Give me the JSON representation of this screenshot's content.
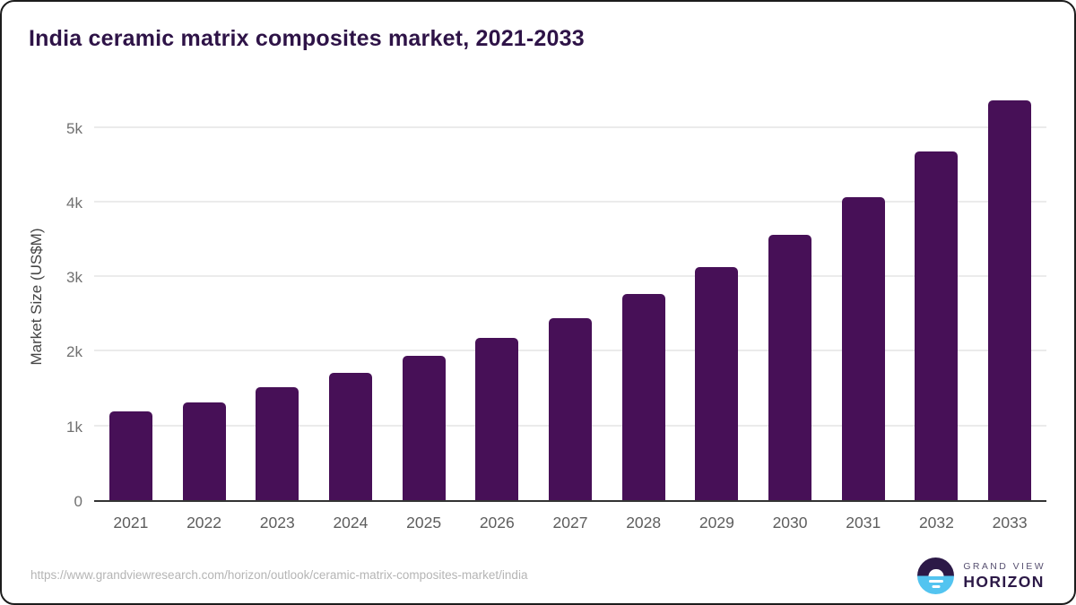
{
  "title": "India ceramic matrix composites market, 2021-2033",
  "chart_data": {
    "type": "bar",
    "categories": [
      "2021",
      "2022",
      "2023",
      "2024",
      "2025",
      "2026",
      "2027",
      "2028",
      "2029",
      "2030",
      "2031",
      "2032",
      "2033"
    ],
    "values": [
      1190,
      1310,
      1510,
      1700,
      1930,
      2170,
      2440,
      2760,
      3120,
      3550,
      4060,
      4670,
      5360
    ],
    "title": "India ceramic matrix composites market, 2021-2033",
    "xlabel": "",
    "ylabel": "Market Size (US$M)",
    "ylim": [
      0,
      5500
    ],
    "yticks": [
      {
        "value": 0,
        "label": "0"
      },
      {
        "value": 1000,
        "label": "1k"
      },
      {
        "value": 2000,
        "label": "2k"
      },
      {
        "value": 3000,
        "label": "3k"
      },
      {
        "value": 4000,
        "label": "4k"
      },
      {
        "value": 5000,
        "label": "5k"
      }
    ],
    "grid": true,
    "legend_position": "none",
    "bar_color": "#471057"
  },
  "colors": {
    "bar": "#471057",
    "title": "#2e1347",
    "gridline": "#ebebeb",
    "baseline": "#333333",
    "logo_dark": "#2c1947",
    "logo_blue": "#53c4f0"
  },
  "footer": {
    "source_url": "https://www.grandviewresearch.com/horizon/outlook/ceramic-matrix-composites-market/india",
    "brand": {
      "line1": "GRAND VIEW",
      "line2": "HORIZON"
    }
  }
}
